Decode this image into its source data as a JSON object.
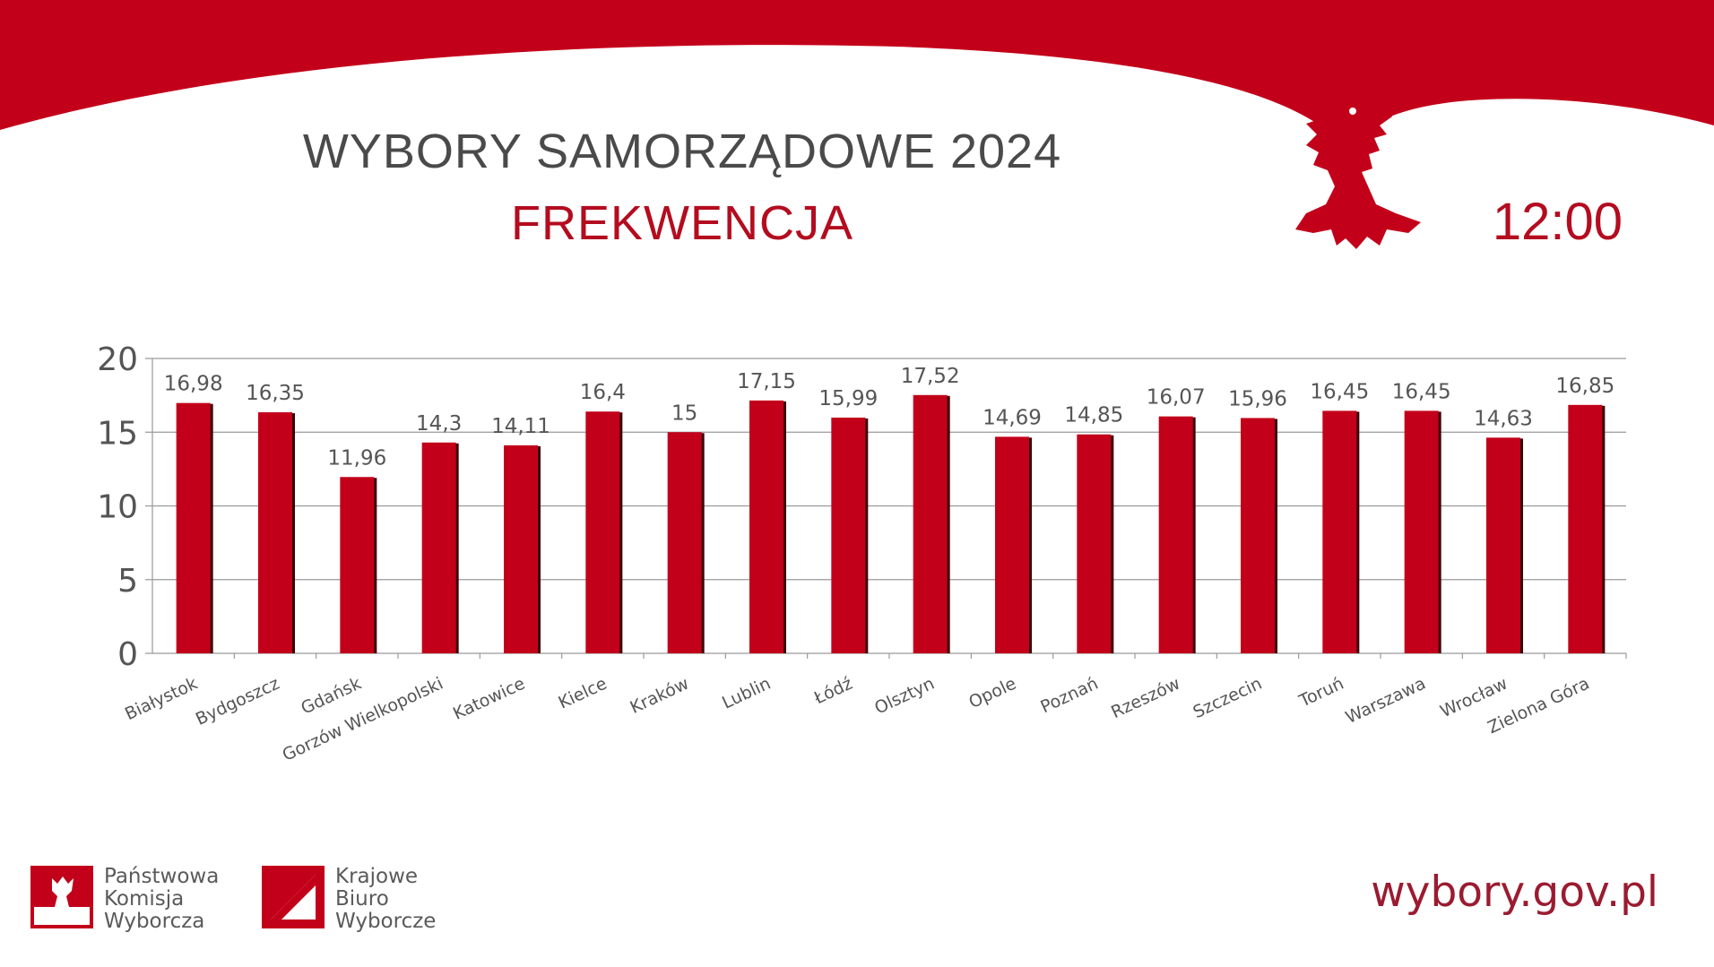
{
  "header": {
    "title": "WYBORY SAMORZĄDOWE 2024",
    "subtitle": "FREKWENCJA",
    "time": "12:00"
  },
  "colors": {
    "brand_red": "#c3001a",
    "title_gray": "#4a4a4a",
    "site_red": "#9b1b30",
    "grid": "#9a9a9a"
  },
  "chart_data": {
    "type": "bar",
    "categories": [
      "Białystok",
      "Bydgoszcz",
      "Gdańsk",
      "Gorzów Wielkopolski",
      "Katowice",
      "Kielce",
      "Kraków",
      "Lublin",
      "Łódź",
      "Olsztyn",
      "Opole",
      "Poznań",
      "Rzeszów",
      "Szczecin",
      "Toruń",
      "Warszawa",
      "Wrocław",
      "Zielona Góra"
    ],
    "values": [
      16.98,
      16.35,
      11.96,
      14.3,
      14.11,
      16.4,
      15,
      17.15,
      15.99,
      17.52,
      14.69,
      14.85,
      16.07,
      15.96,
      16.45,
      16.45,
      14.63,
      16.85
    ],
    "value_labels": [
      "16,98",
      "16,35",
      "11,96",
      "14,3",
      "14,11",
      "16,4",
      "15",
      "17,15",
      "15,99",
      "17,52",
      "14,69",
      "14,85",
      "16,07",
      "15,96",
      "16,45",
      "16,45",
      "14,63",
      "16,85"
    ],
    "yticks": [
      "0",
      "5",
      "10",
      "15",
      "20"
    ],
    "ylim": [
      0,
      20
    ],
    "grid": true,
    "legend": "none",
    "bar_color": "#c3001a"
  },
  "footer": {
    "pkw_lines": [
      "Państwowa",
      "Komisja",
      "Wyborcza"
    ],
    "kbw_lines": [
      "Krajowe",
      "Biuro",
      "Wyborcze"
    ],
    "site": "wybory.gov.pl"
  }
}
